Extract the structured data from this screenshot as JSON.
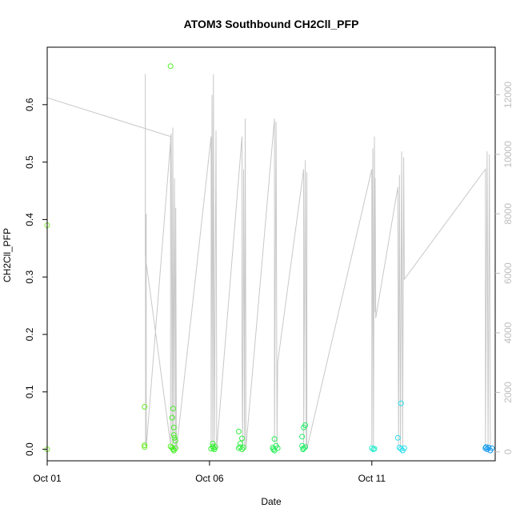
{
  "chart_data": {
    "type": "scatter",
    "title": "ATOM3 Southbound CH2Cll_PFP",
    "xlabel": "Date",
    "ylabel": "CH2Cll_PFP",
    "xlim": [
      0,
      13.8
    ],
    "ylim": [
      -0.02,
      0.7
    ],
    "x_ticks": [
      {
        "x": 0,
        "label": "Oct 01"
      },
      {
        "x": 5,
        "label": "Oct 06"
      },
      {
        "x": 10,
        "label": "Oct 11"
      }
    ],
    "y_ticks": [
      0.0,
      0.1,
      0.2,
      0.3,
      0.4,
      0.5,
      0.6
    ],
    "y_tick_labels": [
      "0.0",
      "0.1",
      "0.2",
      "0.3",
      "0.4",
      "0.5",
      "0.6"
    ],
    "y2lim": [
      -300,
      13600
    ],
    "y2_ticks": [
      0,
      2000,
      4000,
      6000,
      8000,
      10000,
      12000
    ],
    "y2_tick_labels": [
      "0",
      "2000",
      "4000",
      "6000",
      "8000",
      "10000",
      "12000"
    ],
    "grid": false,
    "colors": {
      "line": "#c8c8c8",
      "right_axis": "#bdbdbd",
      "axis": "#000000"
    },
    "series": [
      {
        "points": [
          {
            "x": 0.0,
            "y": 0.39,
            "color": "#88ee44"
          },
          {
            "x": 0.0,
            "y": 0.0,
            "color": "#88ee44"
          },
          {
            "x": 3.0,
            "y": 0.074,
            "color": "#66ee22"
          },
          {
            "x": 3.0,
            "y": 0.007,
            "color": "#66ee22"
          },
          {
            "x": 3.0,
            "y": 0.004,
            "color": "#66ee22"
          },
          {
            "x": 3.8,
            "y": 0.667,
            "color": "#55ee22"
          },
          {
            "x": 3.8,
            "y": 0.005,
            "color": "#55ee22"
          },
          {
            "x": 3.85,
            "y": 0.055,
            "color": "#44ee22"
          },
          {
            "x": 3.88,
            "y": 0.071,
            "color": "#44ee22"
          },
          {
            "x": 3.9,
            "y": 0.038,
            "color": "#44ee22"
          },
          {
            "x": 3.9,
            "y": 0.025,
            "color": "#44ee22"
          },
          {
            "x": 3.92,
            "y": 0.02,
            "color": "#44ee22"
          },
          {
            "x": 3.95,
            "y": 0.015,
            "color": "#44ee22"
          },
          {
            "x": 3.85,
            "y": 0.003,
            "color": "#44ee22"
          },
          {
            "x": 3.88,
            "y": 0.0,
            "color": "#44ee22"
          },
          {
            "x": 3.9,
            "y": -0.002,
            "color": "#44ee22"
          },
          {
            "x": 3.95,
            "y": 0.002,
            "color": "#44ee22"
          },
          {
            "x": 5.1,
            "y": 0.01,
            "color": "#33ee33"
          },
          {
            "x": 5.1,
            "y": 0.005,
            "color": "#33ee33"
          },
          {
            "x": 5.12,
            "y": 0.002,
            "color": "#33ee33"
          },
          {
            "x": 5.15,
            "y": 0.0,
            "color": "#33ee33"
          },
          {
            "x": 5.18,
            "y": 0.004,
            "color": "#33ee33"
          },
          {
            "x": 5.05,
            "y": 0.001,
            "color": "#33ee33"
          },
          {
            "x": 5.9,
            "y": 0.031,
            "color": "#33ee44"
          },
          {
            "x": 5.95,
            "y": 0.01,
            "color": "#33ee44"
          },
          {
            "x": 6.0,
            "y": 0.019,
            "color": "#33ee44"
          },
          {
            "x": 5.9,
            "y": 0.002,
            "color": "#33ee44"
          },
          {
            "x": 5.95,
            "y": 0.004,
            "color": "#33ee44"
          },
          {
            "x": 6.0,
            "y": 0.0,
            "color": "#33ee44"
          },
          {
            "x": 6.05,
            "y": 0.003,
            "color": "#33ee44"
          },
          {
            "x": 7.0,
            "y": 0.018,
            "color": "#22ee55"
          },
          {
            "x": 7.05,
            "y": 0.006,
            "color": "#22ee55"
          },
          {
            "x": 6.95,
            "y": 0.003,
            "color": "#22ee55"
          },
          {
            "x": 7.0,
            "y": -0.002,
            "color": "#22ee55"
          },
          {
            "x": 7.1,
            "y": 0.002,
            "color": "#22ee55"
          },
          {
            "x": 6.97,
            "y": 0.0,
            "color": "#22ee55"
          },
          {
            "x": 7.85,
            "y": 0.022,
            "color": "#22ee66"
          },
          {
            "x": 7.9,
            "y": 0.038,
            "color": "#22ee66"
          },
          {
            "x": 7.95,
            "y": 0.042,
            "color": "#22ee66"
          },
          {
            "x": 7.85,
            "y": 0.006,
            "color": "#22ee66"
          },
          {
            "x": 7.9,
            "y": 0.002,
            "color": "#22ee66"
          },
          {
            "x": 7.95,
            "y": 0.004,
            "color": "#22ee66"
          },
          {
            "x": 7.88,
            "y": 0.0,
            "color": "#22ee66"
          },
          {
            "x": 10.0,
            "y": 0.002,
            "color": "#22eecc"
          },
          {
            "x": 10.05,
            "y": 0.0,
            "color": "#22eecc"
          },
          {
            "x": 10.08,
            "y": 0.001,
            "color": "#22eecc"
          },
          {
            "x": 10.8,
            "y": 0.02,
            "color": "#22ddee"
          },
          {
            "x": 10.9,
            "y": 0.08,
            "color": "#22ddee"
          },
          {
            "x": 10.85,
            "y": 0.003,
            "color": "#22ddee"
          },
          {
            "x": 10.9,
            "y": 0.001,
            "color": "#22ddee"
          },
          {
            "x": 10.95,
            "y": -0.002,
            "color": "#22ddee"
          },
          {
            "x": 11.0,
            "y": 0.002,
            "color": "#22ddee"
          },
          {
            "x": 13.5,
            "y": 0.002,
            "color": "#1199ee"
          },
          {
            "x": 13.55,
            "y": 0.0,
            "color": "#1199ee"
          },
          {
            "x": 13.6,
            "y": 0.003,
            "color": "#1199ee"
          },
          {
            "x": 13.65,
            "y": -0.002,
            "color": "#1199ee"
          },
          {
            "x": 13.7,
            "y": 0.002,
            "color": "#1199ee"
          },
          {
            "x": 13.52,
            "y": 0.004,
            "color": "#1199ee"
          }
        ]
      },
      {
        "axis": "right",
        "type": "line",
        "points": [
          [
            0.0,
            0
          ],
          [
            0.0,
            11900
          ],
          [
            3.8,
            10600
          ],
          [
            3.8,
            250
          ],
          [
            3.02,
            6600
          ],
          [
            3.02,
            12700
          ],
          [
            3.03,
            200
          ],
          [
            3.05,
            8000
          ],
          [
            3.05,
            150
          ],
          [
            3.82,
            10700
          ],
          [
            3.85,
            100
          ],
          [
            3.87,
            10900
          ],
          [
            3.89,
            80
          ],
          [
            3.92,
            9200
          ],
          [
            3.95,
            100
          ],
          [
            3.96,
            8200
          ],
          [
            3.98,
            60
          ],
          [
            5.05,
            10600
          ],
          [
            5.05,
            300
          ],
          [
            5.08,
            12000
          ],
          [
            5.1,
            100
          ],
          [
            5.12,
            12700
          ],
          [
            5.15,
            200
          ],
          [
            5.2,
            10800
          ],
          [
            5.22,
            3000
          ],
          [
            5.22,
            100
          ],
          [
            6.0,
            10600
          ],
          [
            6.0,
            3200
          ],
          [
            6.02,
            200
          ],
          [
            6.05,
            9500
          ],
          [
            6.08,
            100
          ],
          [
            6.1,
            11200
          ],
          [
            6.12,
            3600
          ],
          [
            6.12,
            100
          ],
          [
            7.0,
            11200
          ],
          [
            7.0,
            300
          ],
          [
            7.05,
            11100
          ],
          [
            7.08,
            100
          ],
          [
            7.1,
            3000
          ],
          [
            7.9,
            9500
          ],
          [
            7.9,
            200
          ],
          [
            7.95,
            9800
          ],
          [
            7.98,
            100
          ],
          [
            8.0,
            9400
          ],
          [
            8.0,
            100
          ],
          [
            10.0,
            9500
          ],
          [
            10.0,
            200
          ],
          [
            10.03,
            10200
          ],
          [
            10.05,
            100
          ],
          [
            10.08,
            10600
          ],
          [
            10.1,
            4700
          ],
          [
            10.1,
            9200
          ],
          [
            10.12,
            4500
          ],
          [
            10.8,
            8900
          ],
          [
            10.82,
            200
          ],
          [
            10.85,
            9300
          ],
          [
            10.88,
            100
          ],
          [
            10.92,
            10100
          ],
          [
            10.95,
            200
          ],
          [
            10.98,
            9900
          ],
          [
            11.0,
            5800
          ],
          [
            13.5,
            9500
          ],
          [
            13.5,
            200
          ],
          [
            13.55,
            10100
          ],
          [
            13.58,
            100
          ],
          [
            13.62,
            10000
          ],
          [
            13.65,
            200
          ]
        ]
      }
    ]
  }
}
